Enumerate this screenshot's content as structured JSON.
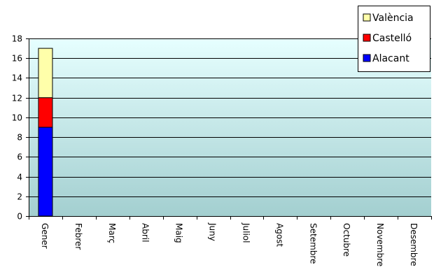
{
  "chart_data": {
    "type": "bar",
    "stacked": true,
    "categories": [
      "Gener",
      "Febrer",
      "Març",
      "Abril",
      "Maig",
      "Juny",
      "Juliol",
      "Agost",
      "Setembre",
      "Octubre",
      "Novembre",
      "Desembre"
    ],
    "series": [
      {
        "name": "Alacant",
        "color": "#0000ff",
        "values": [
          9,
          0,
          0,
          0,
          0,
          0,
          0,
          0,
          0,
          0,
          0,
          0
        ]
      },
      {
        "name": "Castelló",
        "color": "#ff0000",
        "values": [
          3,
          0,
          0,
          0,
          0,
          0,
          0,
          0,
          0,
          0,
          0,
          0
        ]
      },
      {
        "name": "València",
        "color": "#ffffaa",
        "values": [
          5,
          0,
          0,
          0,
          0,
          0,
          0,
          0,
          0,
          0,
          0,
          0
        ]
      }
    ],
    "ylim": [
      0,
      18
    ],
    "yticks": [
      0,
      2,
      4,
      6,
      8,
      10,
      12,
      14,
      16,
      18
    ],
    "grid": true,
    "legend": "top-right",
    "legend_order": [
      "València",
      "Castelló",
      "Alacant"
    ],
    "plot_background": {
      "top_color": "#e6ffff",
      "bottom_color": "#a3cfd0"
    }
  }
}
